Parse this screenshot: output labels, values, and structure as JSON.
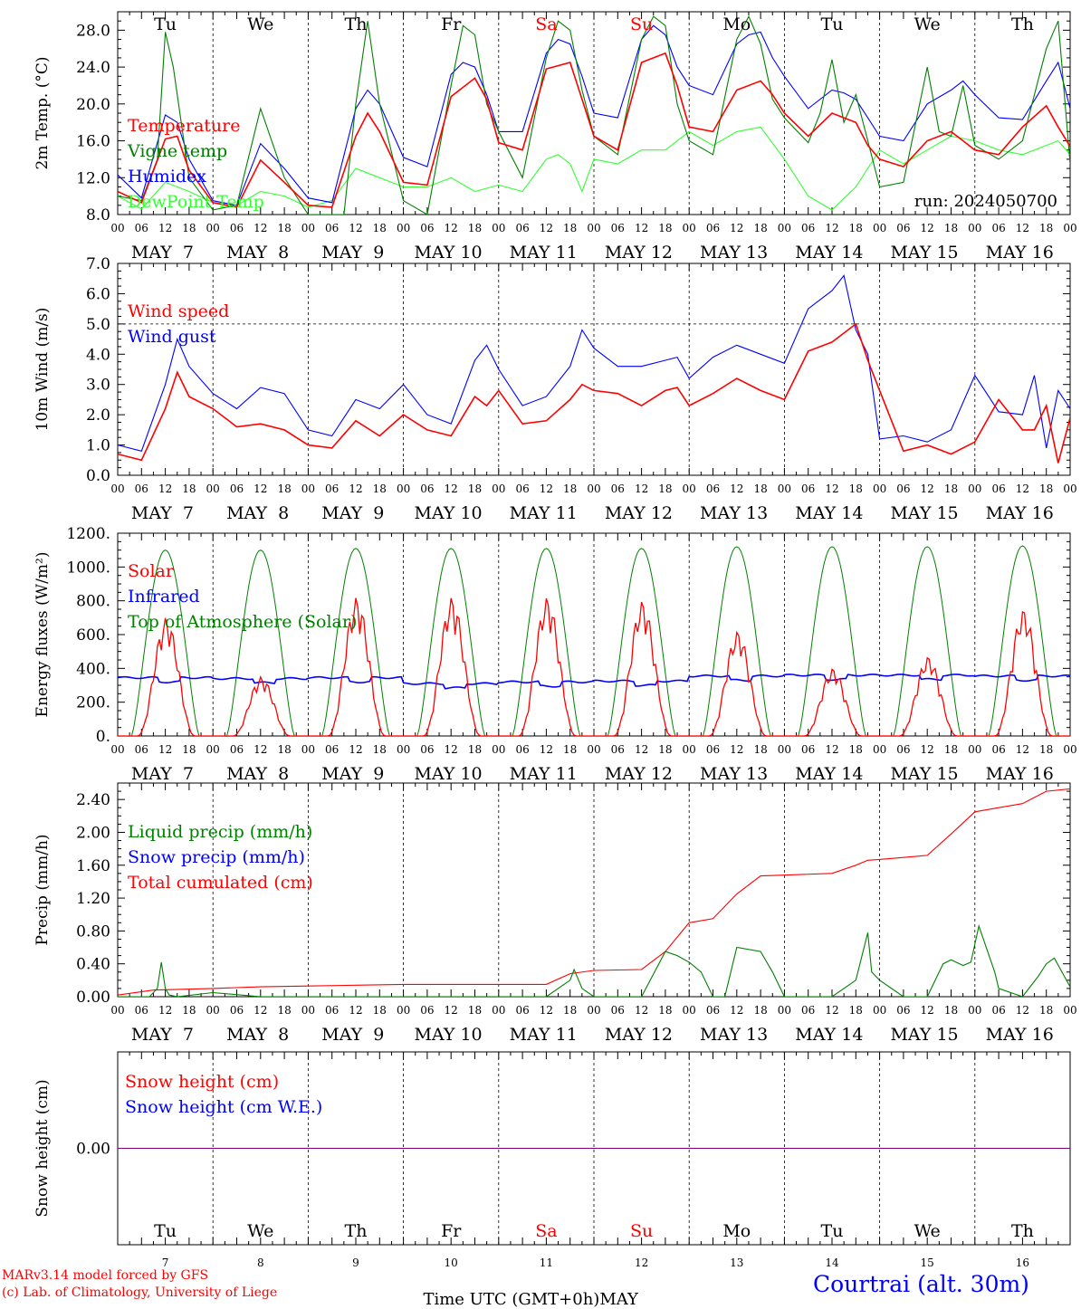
{
  "run_label": "run: 2024050700",
  "credits": [
    "MARv3.14 model forced by GFS",
    "(c) Lab. of Climatology, University of Liege"
  ],
  "x_axis_title": "Time UTC (GMT+0h)",
  "x_axis_month": "MAY",
  "station": "Courtrai (alt. 30m)",
  "hour_ticks": [
    "00",
    "06",
    "12",
    "18"
  ],
  "date_labels": [
    "MAY  7",
    "MAY  8",
    "MAY  9",
    "MAY 10",
    "MAY 11",
    "MAY 12",
    "MAY 13",
    "MAY 14",
    "MAY 15",
    "MAY 16"
  ],
  "day_numbers": [
    "7",
    "8",
    "9",
    "10",
    "11",
    "12",
    "13",
    "14",
    "15",
    "16"
  ],
  "weekdays": [
    {
      "label": "Tu",
      "color": "#000000"
    },
    {
      "label": "We",
      "color": "#000000"
    },
    {
      "label": "Th",
      "color": "#000000"
    },
    {
      "label": "Fr",
      "color": "#000000"
    },
    {
      "label": "Sa",
      "color": "#ff0000"
    },
    {
      "label": "Su",
      "color": "#ff0000"
    },
    {
      "label": "Mo",
      "color": "#000000"
    },
    {
      "label": "Tu",
      "color": "#000000"
    },
    {
      "label": "We",
      "color": "#000000"
    },
    {
      "label": "Th",
      "color": "#000000"
    }
  ],
  "chart_data": [
    {
      "type": "line",
      "ylabel": "2m Temp. (°C)",
      "ylim": [
        8,
        30
      ],
      "yticks": [
        "8.0",
        "12.0",
        "16.0",
        "20.0",
        "24.0",
        "28.0"
      ],
      "ytick_values": [
        8,
        12,
        16,
        20,
        24,
        28
      ],
      "x_unit": "hours since MAY 7 00 UTC",
      "xlim": [
        0,
        240
      ],
      "series": [
        {
          "name": "Temperature",
          "color": "#ff0000",
          "x": [
            0,
            6,
            12,
            15,
            18,
            24,
            30,
            36,
            42,
            48,
            54,
            60,
            63,
            66,
            72,
            78,
            84,
            90,
            93,
            96,
            102,
            108,
            114,
            117,
            120,
            126,
            132,
            138,
            141,
            144,
            150,
            156,
            162,
            165,
            168,
            174,
            180,
            186,
            189,
            192,
            198,
            204,
            210,
            213,
            216,
            222,
            228,
            234,
            237,
            240
          ],
          "y": [
            10.5,
            9.3,
            16.2,
            16.5,
            12.8,
            9.3,
            8.8,
            13.9,
            11.5,
            9.0,
            8.8,
            16.5,
            19.0,
            17.0,
            11.5,
            11.2,
            20.8,
            22.8,
            20.5,
            15.8,
            15.0,
            23.8,
            24.5,
            20.5,
            16.5,
            15.0,
            24.5,
            25.5,
            22.0,
            17.5,
            17.0,
            21.5,
            22.5,
            21.0,
            19.0,
            16.5,
            19.0,
            18.0,
            15.5,
            14.0,
            13.2,
            16.0,
            17.0,
            16.0,
            15.0,
            14.5,
            17.5,
            19.8,
            17.5,
            15.4
          ]
        },
        {
          "name": "Vigne temp",
          "color": "#008000",
          "x": [
            0,
            6,
            10,
            12,
            14,
            18,
            24,
            30,
            36,
            42,
            48,
            54,
            57,
            60,
            63,
            66,
            72,
            78,
            84,
            87,
            90,
            93,
            96,
            102,
            108,
            111,
            114,
            117,
            120,
            126,
            132,
            135,
            138,
            141,
            144,
            150,
            156,
            159,
            162,
            165,
            168,
            174,
            177,
            180,
            183,
            186,
            189,
            192,
            198,
            204,
            207,
            210,
            213,
            216,
            222,
            228,
            234,
            237,
            240
          ],
          "y": [
            10.0,
            9.5,
            14.0,
            27.8,
            24.0,
            12.0,
            8.5,
            9.0,
            19.5,
            12.0,
            7.8,
            7.5,
            8.0,
            20.0,
            29.0,
            20.0,
            9.5,
            8.0,
            22.0,
            28.5,
            27.5,
            20.0,
            17.0,
            12.0,
            25.0,
            29.0,
            28.0,
            21.5,
            16.5,
            14.5,
            27.0,
            29.5,
            28.5,
            20.0,
            16.0,
            14.5,
            27.0,
            29.5,
            26.5,
            20.5,
            18.5,
            15.8,
            19.0,
            24.8,
            18.0,
            21.0,
            16.0,
            11.0,
            11.5,
            24.0,
            17.0,
            16.5,
            22.0,
            15.5,
            14.0,
            16.0,
            26.0,
            29.0,
            13.5
          ]
        },
        {
          "name": "Humidex",
          "color": "#0000ff",
          "x": [
            0,
            6,
            12,
            15,
            18,
            24,
            30,
            36,
            42,
            48,
            54,
            60,
            63,
            66,
            72,
            78,
            84,
            87,
            90,
            93,
            96,
            102,
            108,
            111,
            114,
            117,
            120,
            126,
            132,
            135,
            138,
            141,
            144,
            150,
            156,
            159,
            162,
            165,
            168,
            174,
            180,
            183,
            186,
            189,
            192,
            198,
            204,
            210,
            213,
            216,
            222,
            228,
            234,
            237,
            240
          ],
          "y": [
            12.3,
            9.8,
            18.8,
            18.0,
            14.0,
            9.5,
            9.0,
            15.7,
            13.0,
            9.8,
            9.3,
            19.5,
            21.5,
            20.0,
            14.2,
            13.2,
            23.2,
            24.5,
            24.0,
            21.0,
            17.0,
            17.0,
            25.5,
            27.0,
            26.5,
            23.0,
            19.0,
            18.5,
            27.0,
            28.5,
            27.5,
            24.0,
            22.0,
            21.0,
            26.5,
            27.5,
            27.8,
            25.0,
            23.0,
            19.5,
            21.5,
            21.2,
            20.5,
            18.5,
            16.5,
            16.0,
            20.0,
            21.5,
            22.5,
            21.0,
            18.5,
            18.3,
            22.5,
            24.5,
            19.5
          ]
        },
        {
          "name": "DewPoint Temp",
          "color": "#33ff33",
          "x": [
            0,
            6,
            12,
            18,
            24,
            30,
            36,
            42,
            48,
            54,
            60,
            63,
            66,
            72,
            78,
            84,
            90,
            96,
            102,
            108,
            111,
            114,
            117,
            120,
            126,
            132,
            138,
            144,
            150,
            156,
            162,
            168,
            174,
            180,
            186,
            192,
            198,
            204,
            210,
            216,
            222,
            228,
            234,
            237,
            240
          ],
          "y": [
            10.0,
            8.6,
            11.5,
            10.5,
            9.3,
            9.0,
            10.5,
            10.0,
            8.8,
            9.5,
            13.0,
            12.5,
            12.0,
            11.0,
            11.0,
            12.0,
            10.5,
            11.2,
            10.5,
            14.0,
            14.5,
            13.5,
            10.5,
            14.0,
            13.5,
            15.0,
            15.0,
            17.0,
            15.5,
            17.0,
            17.5,
            14.0,
            10.0,
            8.5,
            11.0,
            15.0,
            13.5,
            15.0,
            16.5,
            16.0,
            15.0,
            14.5,
            15.5,
            16.0,
            14.5
          ]
        }
      ]
    },
    {
      "type": "line",
      "ylabel": "10m Wind (m/s)",
      "ylim": [
        0,
        7
      ],
      "yticks": [
        "0.0",
        "1.0",
        "2.0",
        "3.0",
        "4.0",
        "5.0",
        "6.0",
        "7.0"
      ],
      "ytick_values": [
        0,
        1,
        2,
        3,
        4,
        5,
        6,
        7
      ],
      "xlim": [
        0,
        240
      ],
      "series": [
        {
          "name": "Wind speed",
          "color": "#ff0000",
          "x": [
            0,
            6,
            12,
            15,
            18,
            24,
            30,
            36,
            42,
            48,
            54,
            60,
            66,
            72,
            78,
            84,
            90,
            93,
            96,
            102,
            108,
            114,
            117,
            120,
            126,
            132,
            138,
            141,
            144,
            150,
            156,
            162,
            168,
            174,
            180,
            186,
            189,
            192,
            198,
            204,
            210,
            216,
            222,
            228,
            231,
            234,
            237,
            240
          ],
          "y": [
            0.7,
            0.5,
            2.2,
            3.4,
            2.6,
            2.2,
            1.6,
            1.7,
            1.5,
            1.0,
            0.9,
            1.8,
            1.3,
            2.0,
            1.5,
            1.3,
            2.6,
            2.3,
            2.8,
            1.7,
            1.8,
            2.5,
            3.0,
            2.8,
            2.7,
            2.3,
            2.8,
            2.9,
            2.3,
            2.7,
            3.2,
            2.8,
            2.5,
            4.1,
            4.4,
            5.0,
            3.8,
            2.8,
            0.8,
            1.0,
            0.7,
            1.1,
            2.5,
            1.5,
            1.5,
            2.3,
            0.4,
            1.9
          ]
        },
        {
          "name": "Wind gust",
          "color": "#0000ff",
          "x": [
            0,
            6,
            12,
            15,
            18,
            24,
            30,
            36,
            42,
            48,
            54,
            60,
            66,
            72,
            78,
            84,
            90,
            93,
            96,
            102,
            108,
            114,
            117,
            120,
            126,
            132,
            138,
            141,
            144,
            150,
            156,
            162,
            168,
            174,
            180,
            183,
            186,
            189,
            192,
            198,
            204,
            210,
            216,
            222,
            228,
            231,
            234,
            237,
            240
          ],
          "y": [
            1.0,
            0.8,
            3.0,
            4.5,
            3.6,
            2.7,
            2.2,
            2.9,
            2.7,
            1.5,
            1.3,
            2.5,
            2.2,
            3.0,
            2.0,
            1.7,
            3.8,
            4.3,
            3.5,
            2.3,
            2.6,
            3.6,
            4.8,
            4.2,
            3.6,
            3.6,
            3.8,
            3.9,
            3.2,
            3.9,
            4.3,
            4.0,
            3.7,
            5.5,
            6.1,
            6.6,
            4.8,
            4.0,
            1.2,
            1.3,
            1.1,
            1.5,
            3.3,
            2.1,
            2.0,
            3.3,
            0.9,
            2.8,
            2.2
          ]
        }
      ]
    },
    {
      "type": "line",
      "ylabel": "Energy fluxes (W/m²)",
      "ylim": [
        0,
        1200
      ],
      "yticks": [
        "0.",
        "200.",
        "400.",
        "600.",
        "800.",
        "1000.",
        "1200."
      ],
      "ytick_values": [
        0,
        200,
        400,
        600,
        800,
        1000,
        1200
      ],
      "xlim": [
        0,
        240
      ],
      "series": [
        {
          "name": "Solar",
          "color": "#ff0000"
        },
        {
          "name": "Infrared",
          "color": "#0000ff"
        },
        {
          "name": "Top of Atmosphere (Solar)",
          "color": "#008000"
        }
      ],
      "toa_peak": [
        1100,
        1100,
        1110,
        1110,
        1110,
        1110,
        1120,
        1120,
        1120,
        1125
      ],
      "solar_peak": [
        700,
        350,
        820,
        820,
        820,
        800,
        620,
        400,
        470,
        750
      ],
      "infrared_level": [
        345,
        340,
        345,
        310,
        320,
        325,
        355,
        360,
        360,
        355
      ]
    },
    {
      "type": "line",
      "ylabel": "Precip (mm/h)",
      "ylim": [
        0,
        2.6
      ],
      "yticks": [
        "0.00",
        "0.40",
        "0.80",
        "1.20",
        "1.60",
        "2.00",
        "2.40"
      ],
      "ytick_values": [
        0,
        0.4,
        0.8,
        1.2,
        1.6,
        2.0,
        2.4
      ],
      "xlim": [
        0,
        240
      ],
      "series": [
        {
          "name": "Liquid precip (mm/h)",
          "color": "#008000",
          "x": [
            0,
            8,
            10,
            11,
            12,
            13,
            15,
            24,
            36,
            48,
            96,
            108,
            114,
            115,
            117,
            120,
            132,
            138,
            141,
            144,
            147,
            150,
            153,
            156,
            162,
            165,
            168,
            180,
            186,
            189,
            190,
            192,
            198,
            204,
            208,
            210,
            213,
            215,
            217,
            221,
            222,
            228,
            232,
            234,
            236,
            240
          ],
          "y": [
            0,
            0,
            0.1,
            0.42,
            0.1,
            0.02,
            0,
            0.05,
            0,
            0,
            0,
            0,
            0.2,
            0.33,
            0.1,
            0,
            0,
            0.55,
            0.5,
            0.42,
            0.3,
            0,
            0,
            0.6,
            0.55,
            0.3,
            0,
            0,
            0.2,
            0.78,
            0.3,
            0.2,
            0,
            0,
            0.4,
            0.45,
            0.38,
            0.42,
            0.86,
            0.3,
            0.1,
            0,
            0.25,
            0.4,
            0.47,
            0.12
          ]
        },
        {
          "name": "Snow precip (mm/h)",
          "color": "#0000ff"
        },
        {
          "name": "Total cumulated (cm)",
          "color": "#ff0000",
          "x": [
            0,
            9,
            24,
            36,
            48,
            60,
            72,
            96,
            108,
            114,
            120,
            132,
            138,
            144,
            150,
            156,
            162,
            168,
            180,
            186,
            189,
            192,
            204,
            210,
            216,
            222,
            228,
            234,
            240
          ],
          "y": [
            0.02,
            0.08,
            0.1,
            0.12,
            0.13,
            0.14,
            0.15,
            0.15,
            0.15,
            0.28,
            0.32,
            0.33,
            0.55,
            0.9,
            0.95,
            1.25,
            1.47,
            1.48,
            1.5,
            1.6,
            1.66,
            1.67,
            1.72,
            1.98,
            2.25,
            2.3,
            2.35,
            2.5,
            2.53
          ]
        }
      ]
    },
    {
      "type": "line",
      "ylabel": "Snow height (cm)",
      "yticks": [
        "0.00"
      ],
      "ytick_values": [
        0
      ],
      "xlim": [
        0,
        240
      ],
      "series": [
        {
          "name": "Snow height (cm)",
          "color": "#ff0000",
          "x": [
            0,
            240
          ],
          "y": [
            0,
            0
          ]
        },
        {
          "name": "Snow height (cm W.E.)",
          "color": "#0000ff",
          "x": [
            0,
            240
          ],
          "y": [
            0,
            0
          ]
        }
      ]
    }
  ]
}
